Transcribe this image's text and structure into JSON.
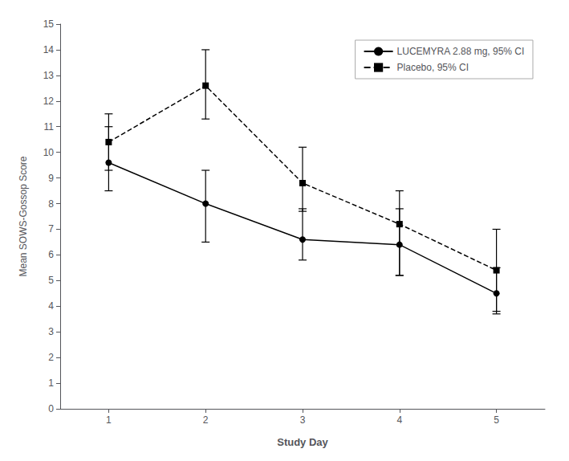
{
  "chart_data": {
    "type": "line",
    "xlabel": "Study Day",
    "ylabel": "Mean SOWS-Gossop Score",
    "x": [
      1,
      2,
      3,
      4,
      5
    ],
    "series": [
      {
        "name": "LUCEMYRA 2.88 mg, 95% CI",
        "color": "black",
        "marker": "circle",
        "line_style": "solid",
        "values": [
          9.6,
          8.0,
          6.6,
          6.4,
          4.5
        ],
        "ci_lower": [
          8.5,
          6.5,
          5.8,
          5.2,
          3.7
        ],
        "ci_upper": [
          11.0,
          9.3,
          7.8,
          7.8,
          5.5
        ]
      },
      {
        "name": "Placebo, 95% CI",
        "color": "black",
        "marker": "square",
        "line_style": "dashed",
        "values": [
          10.4,
          12.6,
          8.8,
          7.2,
          5.4
        ],
        "ci_lower": [
          9.3,
          11.3,
          7.7,
          5.2,
          3.8
        ],
        "ci_upper": [
          11.5,
          14.0,
          10.2,
          8.5,
          7.0
        ]
      }
    ],
    "xlim": [
      0.5,
      5.5
    ],
    "xticks": [
      1,
      2,
      3,
      4,
      5
    ],
    "ylim": [
      0,
      15
    ],
    "yticks": [
      0,
      1,
      2,
      3,
      4,
      5,
      6,
      7,
      8,
      9,
      10,
      11,
      12,
      13,
      14,
      15
    ],
    "grid": false,
    "legend": "upper right"
  }
}
